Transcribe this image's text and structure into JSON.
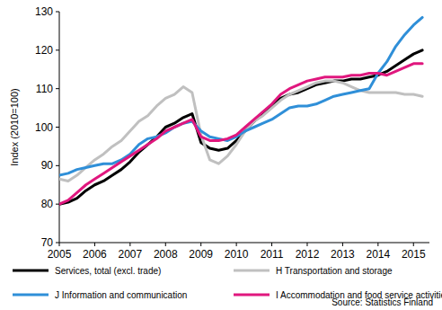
{
  "chart_data": {
    "type": "line",
    "y_label": "Index (2010=100)",
    "annotation": "Source: Statistics Finland",
    "x": [
      2005,
      2005.25,
      2005.5,
      2005.75,
      2006,
      2006.25,
      2006.5,
      2006.75,
      2007,
      2007.25,
      2007.5,
      2007.75,
      2008,
      2008.25,
      2008.5,
      2008.75,
      2009,
      2009.25,
      2009.5,
      2009.75,
      2010,
      2010.25,
      2010.5,
      2010.75,
      2011,
      2011.25,
      2011.5,
      2011.75,
      2012,
      2012.25,
      2012.5,
      2012.75,
      2013,
      2013.25,
      2013.5,
      2013.75,
      2014,
      2014.25,
      2014.5,
      2014.75,
      2015,
      2015.25
    ],
    "xlim": [
      2005,
      2015.45
    ],
    "xticks": [
      2005,
      2006,
      2007,
      2008,
      2009,
      2010,
      2011,
      2012,
      2013,
      2014,
      2015
    ],
    "ylim": [
      70,
      130
    ],
    "yticks": [
      70,
      80,
      90,
      100,
      110,
      120,
      130
    ],
    "grid": false,
    "legend": "bottom",
    "series": [
      {
        "name": "Services, total  (excl. trade)",
        "color": "#000000",
        "values": [
          80,
          80.5,
          81.5,
          83.5,
          85,
          86,
          87.5,
          89,
          91,
          93.5,
          95.5,
          97.5,
          100,
          101,
          102.5,
          103.5,
          96,
          94.5,
          94,
          94.5,
          96.5,
          99,
          101.5,
          103.5,
          105.5,
          107.5,
          108.5,
          109,
          110,
          111,
          111.5,
          112,
          112,
          112.5,
          112.5,
          113,
          113.5,
          114.5,
          116,
          117.5,
          119,
          120
        ]
      },
      {
        "name": "H Transportation and storage",
        "color": "#c0c0c0",
        "values": [
          86.5,
          86,
          87.5,
          89.5,
          91.5,
          93,
          95,
          96.5,
          99,
          101.5,
          103,
          105.5,
          107.5,
          108.5,
          110.5,
          109,
          98,
          91.5,
          90.5,
          92.5,
          95.5,
          99,
          101.5,
          103,
          105,
          107,
          108.5,
          109.5,
          110.5,
          111.5,
          112,
          112,
          111.5,
          110.5,
          109.5,
          109,
          109,
          109,
          109,
          108.5,
          108.5,
          108
        ]
      },
      {
        "name": "J Information and communication",
        "color": "#2f8fd8",
        "values": [
          87.5,
          88,
          89,
          89.5,
          90,
          90.5,
          90.5,
          91.5,
          93,
          95.5,
          97,
          97.5,
          98.5,
          100,
          101,
          101.5,
          99,
          97.5,
          97,
          96.5,
          97.5,
          99,
          100,
          101,
          102,
          103.5,
          105,
          105.5,
          105.5,
          106,
          107,
          108,
          108.5,
          109,
          109.5,
          110,
          114,
          117,
          121,
          124,
          126.5,
          128.5
        ]
      },
      {
        "name": "I Accommodation and food service activities",
        "color": "#e0177e",
        "values": [
          80,
          81,
          83,
          85,
          86.5,
          88,
          89.5,
          91,
          92.5,
          94,
          95.5,
          97,
          99,
          100,
          101,
          102,
          97.5,
          96.5,
          96.5,
          97,
          98,
          100,
          102,
          104,
          106,
          108.5,
          110,
          111,
          112,
          112.5,
          113,
          113,
          113,
          113.5,
          113.5,
          114,
          114,
          113.5,
          114.5,
          115.5,
          116.5,
          116.5
        ]
      }
    ]
  }
}
